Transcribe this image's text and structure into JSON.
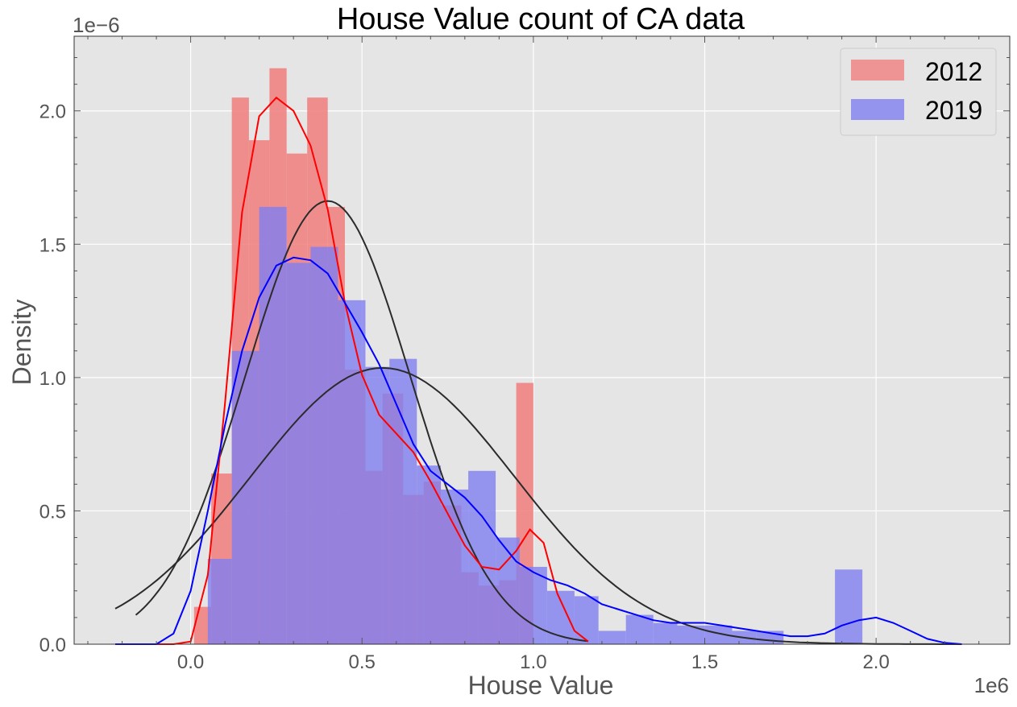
{
  "chart_data": {
    "type": "histogram",
    "title": "House Value count of CA  data",
    "xlabel": "House Value",
    "ylabel": "Density",
    "x_offset_label": "1e6",
    "y_offset_label": "1e−6",
    "xlim": [
      -0.34,
      2.39
    ],
    "ylim": [
      0,
      2.28
    ],
    "x_ticks": [
      0.0,
      0.5,
      1.0,
      1.5,
      2.0
    ],
    "x_tick_labels": [
      "0.0",
      "0.5",
      "1.0",
      "1.5",
      "2.0"
    ],
    "y_ticks": [
      0.0,
      0.5,
      1.0,
      1.5,
      2.0
    ],
    "y_tick_labels": [
      "0.0",
      "0.5",
      "1.0",
      "1.5",
      "2.0"
    ],
    "grid": true,
    "legend_position": "top-right",
    "series": [
      {
        "name": "2012",
        "color": "#f08080",
        "bins": [
          [
            0.01,
            0.06,
            0.14
          ],
          [
            0.06,
            0.12,
            0.64
          ],
          [
            0.12,
            0.17,
            2.05
          ],
          [
            0.17,
            0.23,
            1.89
          ],
          [
            0.23,
            0.28,
            2.16
          ],
          [
            0.28,
            0.34,
            1.84
          ],
          [
            0.34,
            0.4,
            2.05
          ],
          [
            0.4,
            0.45,
            1.64
          ],
          [
            0.45,
            0.51,
            1.03
          ],
          [
            0.51,
            0.56,
            0.65
          ],
          [
            0.56,
            0.62,
            0.94
          ],
          [
            0.62,
            0.68,
            0.56
          ],
          [
            0.68,
            0.73,
            0.61
          ],
          [
            0.73,
            0.79,
            0.52
          ],
          [
            0.79,
            0.84,
            0.27
          ],
          [
            0.84,
            0.9,
            0.22
          ],
          [
            0.9,
            0.95,
            0.24
          ],
          [
            0.95,
            1.0,
            0.98
          ]
        ],
        "kde": [
          [
            -0.22,
            0.0
          ],
          [
            -0.05,
            0.0
          ],
          [
            0.0,
            0.01
          ],
          [
            0.05,
            0.26
          ],
          [
            0.1,
            0.9
          ],
          [
            0.15,
            1.62
          ],
          [
            0.2,
            1.98
          ],
          [
            0.25,
            2.05
          ],
          [
            0.3,
            2.0
          ],
          [
            0.35,
            1.87
          ],
          [
            0.4,
            1.63
          ],
          [
            0.45,
            1.28
          ],
          [
            0.5,
            1.01
          ],
          [
            0.55,
            0.86
          ],
          [
            0.6,
            0.79
          ],
          [
            0.65,
            0.72
          ],
          [
            0.7,
            0.61
          ],
          [
            0.75,
            0.49
          ],
          [
            0.8,
            0.37
          ],
          [
            0.85,
            0.29
          ],
          [
            0.9,
            0.28
          ],
          [
            0.95,
            0.35
          ],
          [
            0.99,
            0.43
          ],
          [
            1.03,
            0.38
          ],
          [
            1.07,
            0.19
          ],
          [
            1.12,
            0.05
          ],
          [
            1.16,
            0.01
          ]
        ],
        "normal_fit": {
          "mean": 0.4,
          "sd": 0.24,
          "x_range": [
            -0.16,
            1.16
          ]
        }
      },
      {
        "name": "2019",
        "color": "#8080f0",
        "bins": [
          [
            0.05,
            0.12,
            0.32
          ],
          [
            0.12,
            0.2,
            1.1
          ],
          [
            0.2,
            0.28,
            1.64
          ],
          [
            0.28,
            0.35,
            1.43
          ],
          [
            0.35,
            0.43,
            1.49
          ],
          [
            0.43,
            0.51,
            1.29
          ],
          [
            0.51,
            0.58,
            1.04
          ],
          [
            0.58,
            0.66,
            1.07
          ],
          [
            0.66,
            0.73,
            0.67
          ],
          [
            0.73,
            0.81,
            0.58
          ],
          [
            0.81,
            0.89,
            0.65
          ],
          [
            0.89,
            0.96,
            0.4
          ],
          [
            0.96,
            1.04,
            0.29
          ],
          [
            1.04,
            1.12,
            0.2
          ],
          [
            1.12,
            1.19,
            0.18
          ],
          [
            1.19,
            1.27,
            0.05
          ],
          [
            1.27,
            1.35,
            0.11
          ],
          [
            1.35,
            1.42,
            0.08
          ],
          [
            1.42,
            1.5,
            0.07
          ],
          [
            1.5,
            1.58,
            0.07
          ],
          [
            1.58,
            1.65,
            0.05
          ],
          [
            1.65,
            1.73,
            0.05
          ],
          [
            1.73,
            1.81,
            0.0
          ],
          [
            1.81,
            1.88,
            0.0
          ],
          [
            1.88,
            1.96,
            0.28
          ]
        ],
        "kde": [
          [
            -0.22,
            0.0
          ],
          [
            -0.1,
            0.0
          ],
          [
            -0.05,
            0.04
          ],
          [
            0.0,
            0.2
          ],
          [
            0.05,
            0.5
          ],
          [
            0.1,
            0.82
          ],
          [
            0.15,
            1.1
          ],
          [
            0.2,
            1.3
          ],
          [
            0.25,
            1.42
          ],
          [
            0.3,
            1.45
          ],
          [
            0.35,
            1.44
          ],
          [
            0.4,
            1.39
          ],
          [
            0.45,
            1.28
          ],
          [
            0.5,
            1.17
          ],
          [
            0.55,
            1.05
          ],
          [
            0.6,
            0.9
          ],
          [
            0.65,
            0.75
          ],
          [
            0.7,
            0.65
          ],
          [
            0.75,
            0.6
          ],
          [
            0.8,
            0.55
          ],
          [
            0.85,
            0.48
          ],
          [
            0.9,
            0.39
          ],
          [
            0.95,
            0.31
          ],
          [
            1.0,
            0.27
          ],
          [
            1.05,
            0.24
          ],
          [
            1.1,
            0.22
          ],
          [
            1.15,
            0.19
          ],
          [
            1.2,
            0.15
          ],
          [
            1.25,
            0.13
          ],
          [
            1.3,
            0.11
          ],
          [
            1.35,
            0.09
          ],
          [
            1.4,
            0.08
          ],
          [
            1.45,
            0.08
          ],
          [
            1.5,
            0.08
          ],
          [
            1.55,
            0.07
          ],
          [
            1.6,
            0.06
          ],
          [
            1.65,
            0.05
          ],
          [
            1.7,
            0.04
          ],
          [
            1.75,
            0.03
          ],
          [
            1.8,
            0.03
          ],
          [
            1.85,
            0.04
          ],
          [
            1.9,
            0.07
          ],
          [
            1.95,
            0.09
          ],
          [
            2.0,
            0.1
          ],
          [
            2.05,
            0.08
          ],
          [
            2.1,
            0.05
          ],
          [
            2.15,
            0.02
          ],
          [
            2.2,
            0.005
          ],
          [
            2.25,
            0.0
          ]
        ],
        "normal_fit": {
          "mean": 0.56,
          "sd": 0.385,
          "x_range": [
            -0.22,
            2.25
          ]
        }
      }
    ]
  }
}
